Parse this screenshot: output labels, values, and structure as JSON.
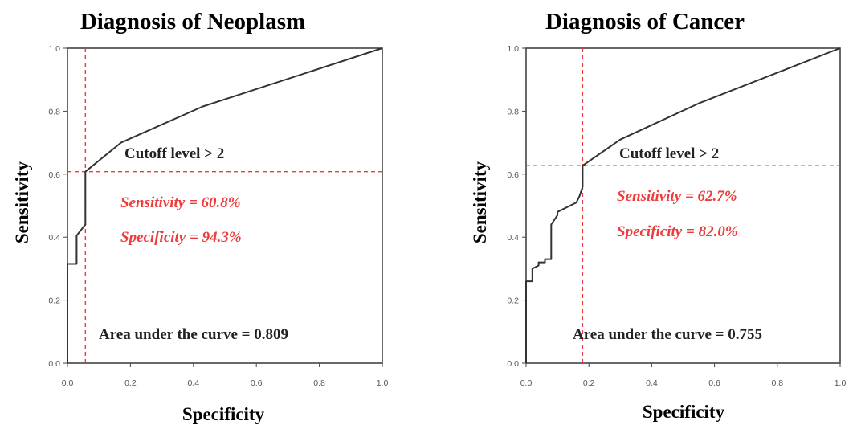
{
  "chart_data": [
    {
      "type": "line",
      "title": "Diagnosis of Neoplasm",
      "xlabel": "Specificity",
      "ylabel": "Sensitivity",
      "xlim": [
        0,
        1
      ],
      "ylim": [
        0,
        1
      ],
      "x_ticks": [
        "0.0",
        "0.2",
        "0.4",
        "0.6",
        "0.8",
        "1.0"
      ],
      "y_ticks": [
        "0.0",
        "0.2",
        "0.4",
        "0.6",
        "0.8",
        "1.0"
      ],
      "grid": false,
      "series": [
        {
          "color": "#333333",
          "x": [
            0.0,
            0.0,
            0.029,
            0.029,
            0.057,
            0.057,
            0.17,
            0.43,
            1.0
          ],
          "y": [
            0.0,
            0.315,
            0.315,
            0.405,
            0.44,
            0.608,
            0.7,
            0.815,
            1.0
          ]
        }
      ],
      "cutoff": {
        "x": 0.057,
        "y": 0.608,
        "color": "#ef3b3b"
      },
      "annotations": {
        "cutoff_text": "Cutoff level > 2",
        "sensitivity_text": "Sensitivity = 60.8%",
        "specificity_text": "Specificity = 94.3%",
        "auc_text": "Area under the curve = 0.809"
      }
    },
    {
      "type": "line",
      "title": "Diagnosis of Cancer",
      "xlabel": "Specificity",
      "ylabel": "Sensitivity",
      "xlim": [
        0,
        1
      ],
      "ylim": [
        0,
        1
      ],
      "x_ticks": [
        "0.0",
        "0.2",
        "0.4",
        "0.6",
        "0.8",
        "1.0"
      ],
      "y_ticks": [
        "0.0",
        "0.2",
        "0.4",
        "0.6",
        "0.8",
        "1.0"
      ],
      "grid": false,
      "series": [
        {
          "color": "#333333",
          "x": [
            0.0,
            0.0,
            0.02,
            0.02,
            0.04,
            0.04,
            0.06,
            0.06,
            0.08,
            0.08,
            0.1,
            0.1,
            0.16,
            0.17,
            0.18,
            0.18,
            0.3,
            0.55,
            1.0
          ],
          "y": [
            0.0,
            0.26,
            0.26,
            0.3,
            0.31,
            0.32,
            0.32,
            0.33,
            0.33,
            0.44,
            0.47,
            0.48,
            0.51,
            0.53,
            0.56,
            0.627,
            0.71,
            0.825,
            1.0
          ]
        }
      ],
      "cutoff": {
        "x": 0.18,
        "y": 0.627,
        "color": "#ef3b3b"
      },
      "annotations": {
        "cutoff_text": "Cutoff level > 2",
        "sensitivity_text": "Sensitivity = 62.7%",
        "specificity_text": "Specificity = 82.0%",
        "auc_text": "Area under the curve = 0.755"
      }
    }
  ]
}
